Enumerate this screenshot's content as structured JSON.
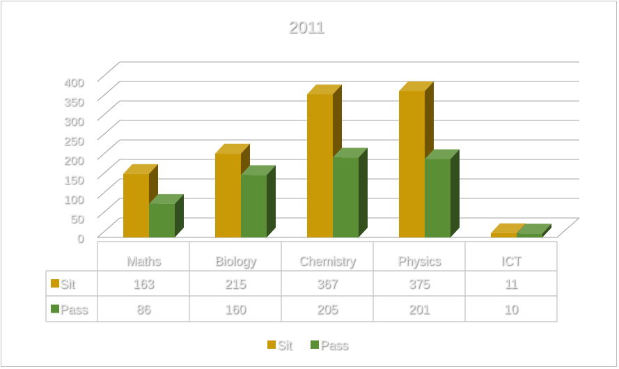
{
  "chart_data": {
    "type": "bar",
    "style": "3d-clustered-column",
    "title": "2011",
    "categories": [
      "Maths",
      "Biology",
      "Chemistry",
      "Physics",
      "ICT"
    ],
    "series": [
      {
        "name": "Sit",
        "values": [
          163,
          215,
          367,
          375,
          11
        ],
        "color": "#C99A06"
      },
      {
        "name": "Pass",
        "values": [
          86,
          160,
          205,
          201,
          10
        ],
        "color": "#5A8F35"
      }
    ],
    "ylim": [
      0,
      400
    ],
    "yticks": [
      "0",
      "50",
      "100",
      "150",
      "200",
      "250",
      "300",
      "350",
      "400"
    ],
    "grid": true,
    "legend": "bottom",
    "data_table": true
  }
}
